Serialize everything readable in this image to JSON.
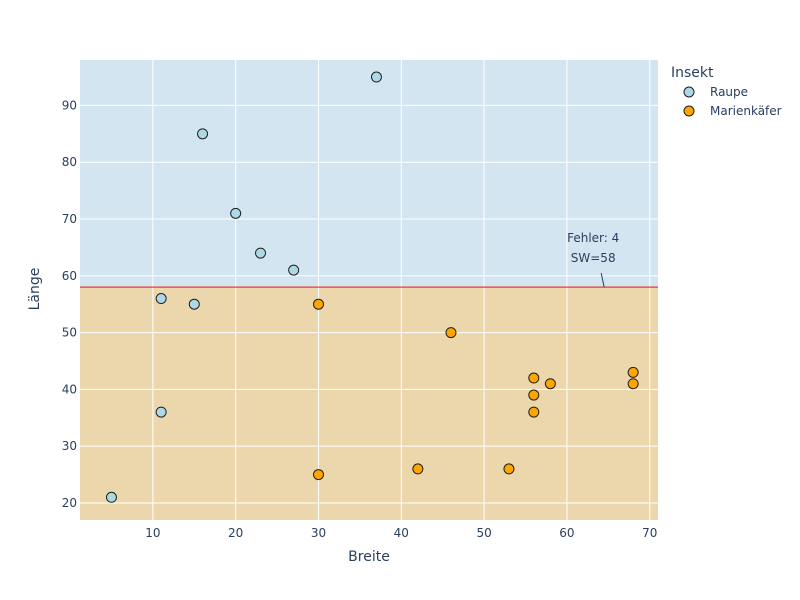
{
  "chart_data": {
    "type": "scatter",
    "title": "",
    "xlabel": "Breite",
    "ylabel": "Länge",
    "xlim": [
      1.2,
      71
    ],
    "ylim": [
      17,
      98
    ],
    "x_ticks": [
      10,
      20,
      30,
      40,
      50,
      60,
      70
    ],
    "y_ticks": [
      20,
      30,
      40,
      50,
      60,
      70,
      80,
      90
    ],
    "grid": true,
    "legend": {
      "title": "Insekt",
      "placement": "top-right"
    },
    "threshold": {
      "y": 58,
      "color": "#ef3b2c"
    },
    "regions": [
      {
        "from": 58,
        "to": 98,
        "color": "#d4e5f2"
      },
      {
        "from": 17,
        "to": 58,
        "color": "#ecd7ad"
      }
    ],
    "annotation": {
      "lines": [
        "Fehler: 4",
        "SW=58"
      ],
      "x": 64.5,
      "y": 58
    },
    "series": [
      {
        "name": "Raupe",
        "color": "#add8e6",
        "points": [
          {
            "x": 37,
            "y": 95
          },
          {
            "x": 16,
            "y": 85
          },
          {
            "x": 20,
            "y": 71
          },
          {
            "x": 23,
            "y": 64
          },
          {
            "x": 27,
            "y": 61
          },
          {
            "x": 11,
            "y": 56
          },
          {
            "x": 15,
            "y": 55
          },
          {
            "x": 11,
            "y": 36
          },
          {
            "x": 5,
            "y": 21
          }
        ]
      },
      {
        "name": "Marienkäfer",
        "color": "#ffa500",
        "points": [
          {
            "x": 30,
            "y": 55
          },
          {
            "x": 46,
            "y": 50
          },
          {
            "x": 56,
            "y": 42
          },
          {
            "x": 58,
            "y": 41
          },
          {
            "x": 56,
            "y": 39
          },
          {
            "x": 56,
            "y": 36
          },
          {
            "x": 68,
            "y": 43
          },
          {
            "x": 68,
            "y": 41
          },
          {
            "x": 30,
            "y": 25
          },
          {
            "x": 42,
            "y": 26
          },
          {
            "x": 53,
            "y": 26
          }
        ]
      }
    ]
  }
}
